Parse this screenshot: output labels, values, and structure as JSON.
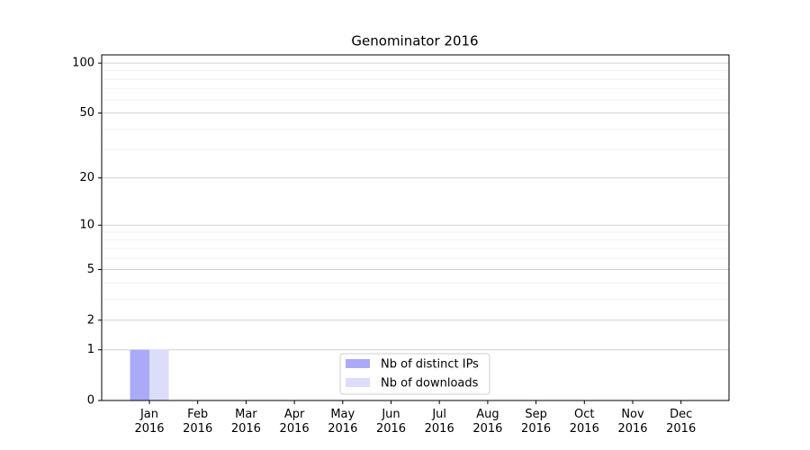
{
  "chart_data": {
    "type": "bar",
    "title": "Genominator 2016",
    "categories": [
      "Jan\n2016",
      "Feb\n2016",
      "Mar\n2016",
      "Apr\n2016",
      "May\n2016",
      "Jun\n2016",
      "Jul\n2016",
      "Aug\n2016",
      "Sep\n2016",
      "Oct\n2016",
      "Nov\n2016",
      "Dec\n2016"
    ],
    "series": [
      {
        "name": "Nb of distinct IPs",
        "color": "#aaaaf7",
        "values": [
          1,
          0,
          0,
          0,
          0,
          0,
          0,
          0,
          0,
          0,
          0,
          0
        ]
      },
      {
        "name": "Nb of downloads",
        "color": "#dcdcfb",
        "values": [
          1,
          0,
          0,
          0,
          0,
          0,
          0,
          0,
          0,
          0,
          0,
          0
        ]
      }
    ],
    "yscale": "log1p",
    "ylim": [
      0,
      112
    ],
    "yticks": [
      0,
      1,
      2,
      5,
      10,
      20,
      50,
      100
    ],
    "minor_yticks": [
      3,
      4,
      6,
      7,
      8,
      9,
      30,
      40,
      60,
      70,
      80,
      90
    ],
    "grid": true,
    "legend": "lower center"
  }
}
